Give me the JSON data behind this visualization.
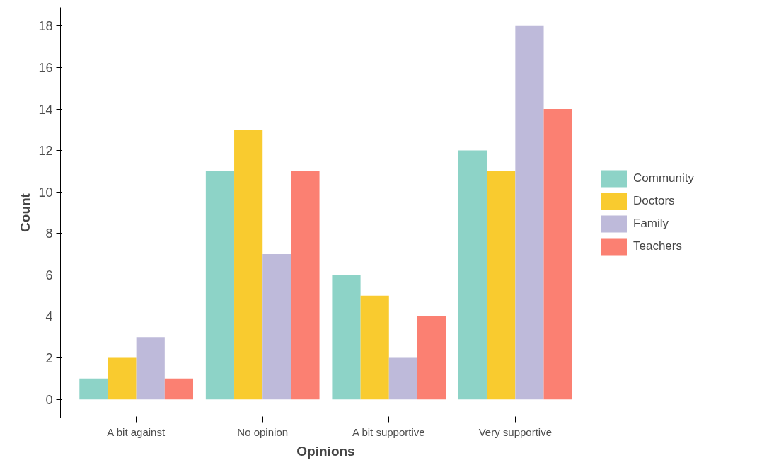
{
  "chart_data": {
    "type": "bar",
    "xlabel": "Opinions",
    "ylabel": "Count",
    "categories": [
      "A bit against",
      "No opinion",
      "A bit supportive",
      "Very supportive"
    ],
    "series": [
      {
        "name": "Community",
        "color": "#8dd3c7",
        "values": [
          1,
          11,
          6,
          12
        ]
      },
      {
        "name": "Doctors",
        "color": "#f9cb2f",
        "values": [
          2,
          13,
          5,
          11
        ]
      },
      {
        "name": "Family",
        "color": "#bebada",
        "values": [
          3,
          7,
          2,
          18
        ]
      },
      {
        "name": "Teachers",
        "color": "#fb8072",
        "values": [
          1,
          11,
          4,
          14
        ]
      }
    ],
    "ylim": [
      -0.9,
      18.9
    ],
    "yticks": [
      0,
      2,
      4,
      6,
      8,
      10,
      12,
      14,
      16,
      18
    ],
    "grid": false,
    "legend": "right"
  }
}
